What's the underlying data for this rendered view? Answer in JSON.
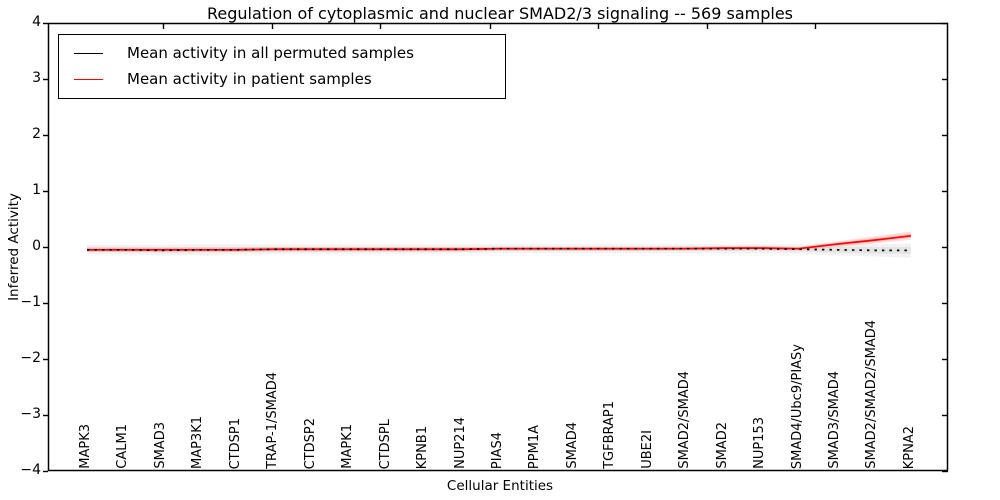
{
  "title": "Regulation of cytoplasmic and nuclear SMAD2/3 signaling -- 569 samples",
  "axes": {
    "ylabel": "Inferred Activity",
    "xlabel": "Cellular Entities",
    "ytick_labels": [
      "4",
      "3",
      "2",
      "1",
      "0",
      "−1",
      "−2",
      "−3",
      "−4"
    ]
  },
  "legend": {
    "items": [
      {
        "label": "Mean activity in all permuted samples",
        "color": "#000000"
      },
      {
        "label": "Mean activity in patient samples",
        "color": "#ff0000"
      }
    ]
  },
  "chart_data": {
    "type": "line",
    "title": "Regulation of cytoplasmic and nuclear SMAD2/3 signaling -- 569 samples",
    "xlabel": "Cellular Entities",
    "ylabel": "Inferred Activity",
    "ylim": [
      -4,
      4
    ],
    "yticks": [
      4,
      3,
      2,
      1,
      0,
      -1,
      -2,
      -3,
      -4
    ],
    "grid": false,
    "legend_position": "upper left",
    "categories": [
      "MAPK3",
      "CALM1",
      "SMAD3",
      "MAP3K1",
      "CTDSP1",
      "TRAP-1/SMAD4",
      "CTDSP2",
      "MAPK1",
      "CTDSPL",
      "KPNB1",
      "NUP214",
      "PIAS4",
      "PPM1A",
      "SMAD4",
      "TGFBRAP1",
      "UBE2I",
      "SMAD2/SMAD4",
      "SMAD2",
      "NUP153",
      "SMAD4/Ubc9/PIASy",
      "SMAD3/SMAD4",
      "SMAD2/SMAD2/SMAD4",
      "KPNA2"
    ],
    "series": [
      {
        "name": "Mean activity in all permuted samples",
        "color": "#000000",
        "linestyle": "dotted",
        "band_color": "#999999",
        "mean": [
          -0.05,
          -0.05,
          -0.06,
          -0.05,
          -0.05,
          -0.04,
          -0.04,
          -0.04,
          -0.04,
          -0.04,
          -0.04,
          -0.03,
          -0.03,
          -0.03,
          -0.03,
          -0.03,
          -0.03,
          -0.03,
          -0.03,
          -0.04,
          -0.05,
          -0.06,
          -0.06
        ],
        "band_upper": [
          0.04,
          0.04,
          0.04,
          0.05,
          0.05,
          0.05,
          0.05,
          0.05,
          0.05,
          0.05,
          0.05,
          0.05,
          0.05,
          0.05,
          0.05,
          0.05,
          0.05,
          0.05,
          0.05,
          0.05,
          0.05,
          0.05,
          0.06
        ],
        "band_lower": [
          -0.12,
          -0.13,
          -0.15,
          -0.14,
          -0.13,
          -0.12,
          -0.12,
          -0.12,
          -0.12,
          -0.12,
          -0.11,
          -0.11,
          -0.11,
          -0.11,
          -0.11,
          -0.11,
          -0.11,
          -0.11,
          -0.11,
          -0.12,
          -0.15,
          -0.17,
          -0.19
        ]
      },
      {
        "name": "Mean activity in patient samples",
        "color": "#ff0000",
        "linestyle": "solid",
        "band_color": "#ff0000",
        "mean": [
          -0.05,
          -0.05,
          -0.05,
          -0.05,
          -0.05,
          -0.04,
          -0.04,
          -0.04,
          -0.04,
          -0.04,
          -0.04,
          -0.03,
          -0.03,
          -0.03,
          -0.03,
          -0.03,
          -0.03,
          -0.02,
          -0.02,
          -0.03,
          0.05,
          0.12,
          0.2
        ],
        "band_upper": [
          -0.01,
          -0.01,
          -0.01,
          -0.01,
          -0.01,
          0.0,
          0.0,
          0.0,
          0.0,
          0.0,
          0.0,
          0.0,
          0.0,
          0.0,
          0.0,
          0.0,
          0.01,
          0.01,
          0.02,
          0.0,
          0.1,
          0.19,
          0.28
        ],
        "band_lower": [
          -0.09,
          -0.09,
          -0.09,
          -0.09,
          -0.09,
          -0.08,
          -0.08,
          -0.08,
          -0.08,
          -0.08,
          -0.08,
          -0.07,
          -0.07,
          -0.07,
          -0.07,
          -0.07,
          -0.06,
          -0.06,
          -0.05,
          -0.06,
          0.0,
          0.06,
          0.13
        ]
      }
    ]
  }
}
